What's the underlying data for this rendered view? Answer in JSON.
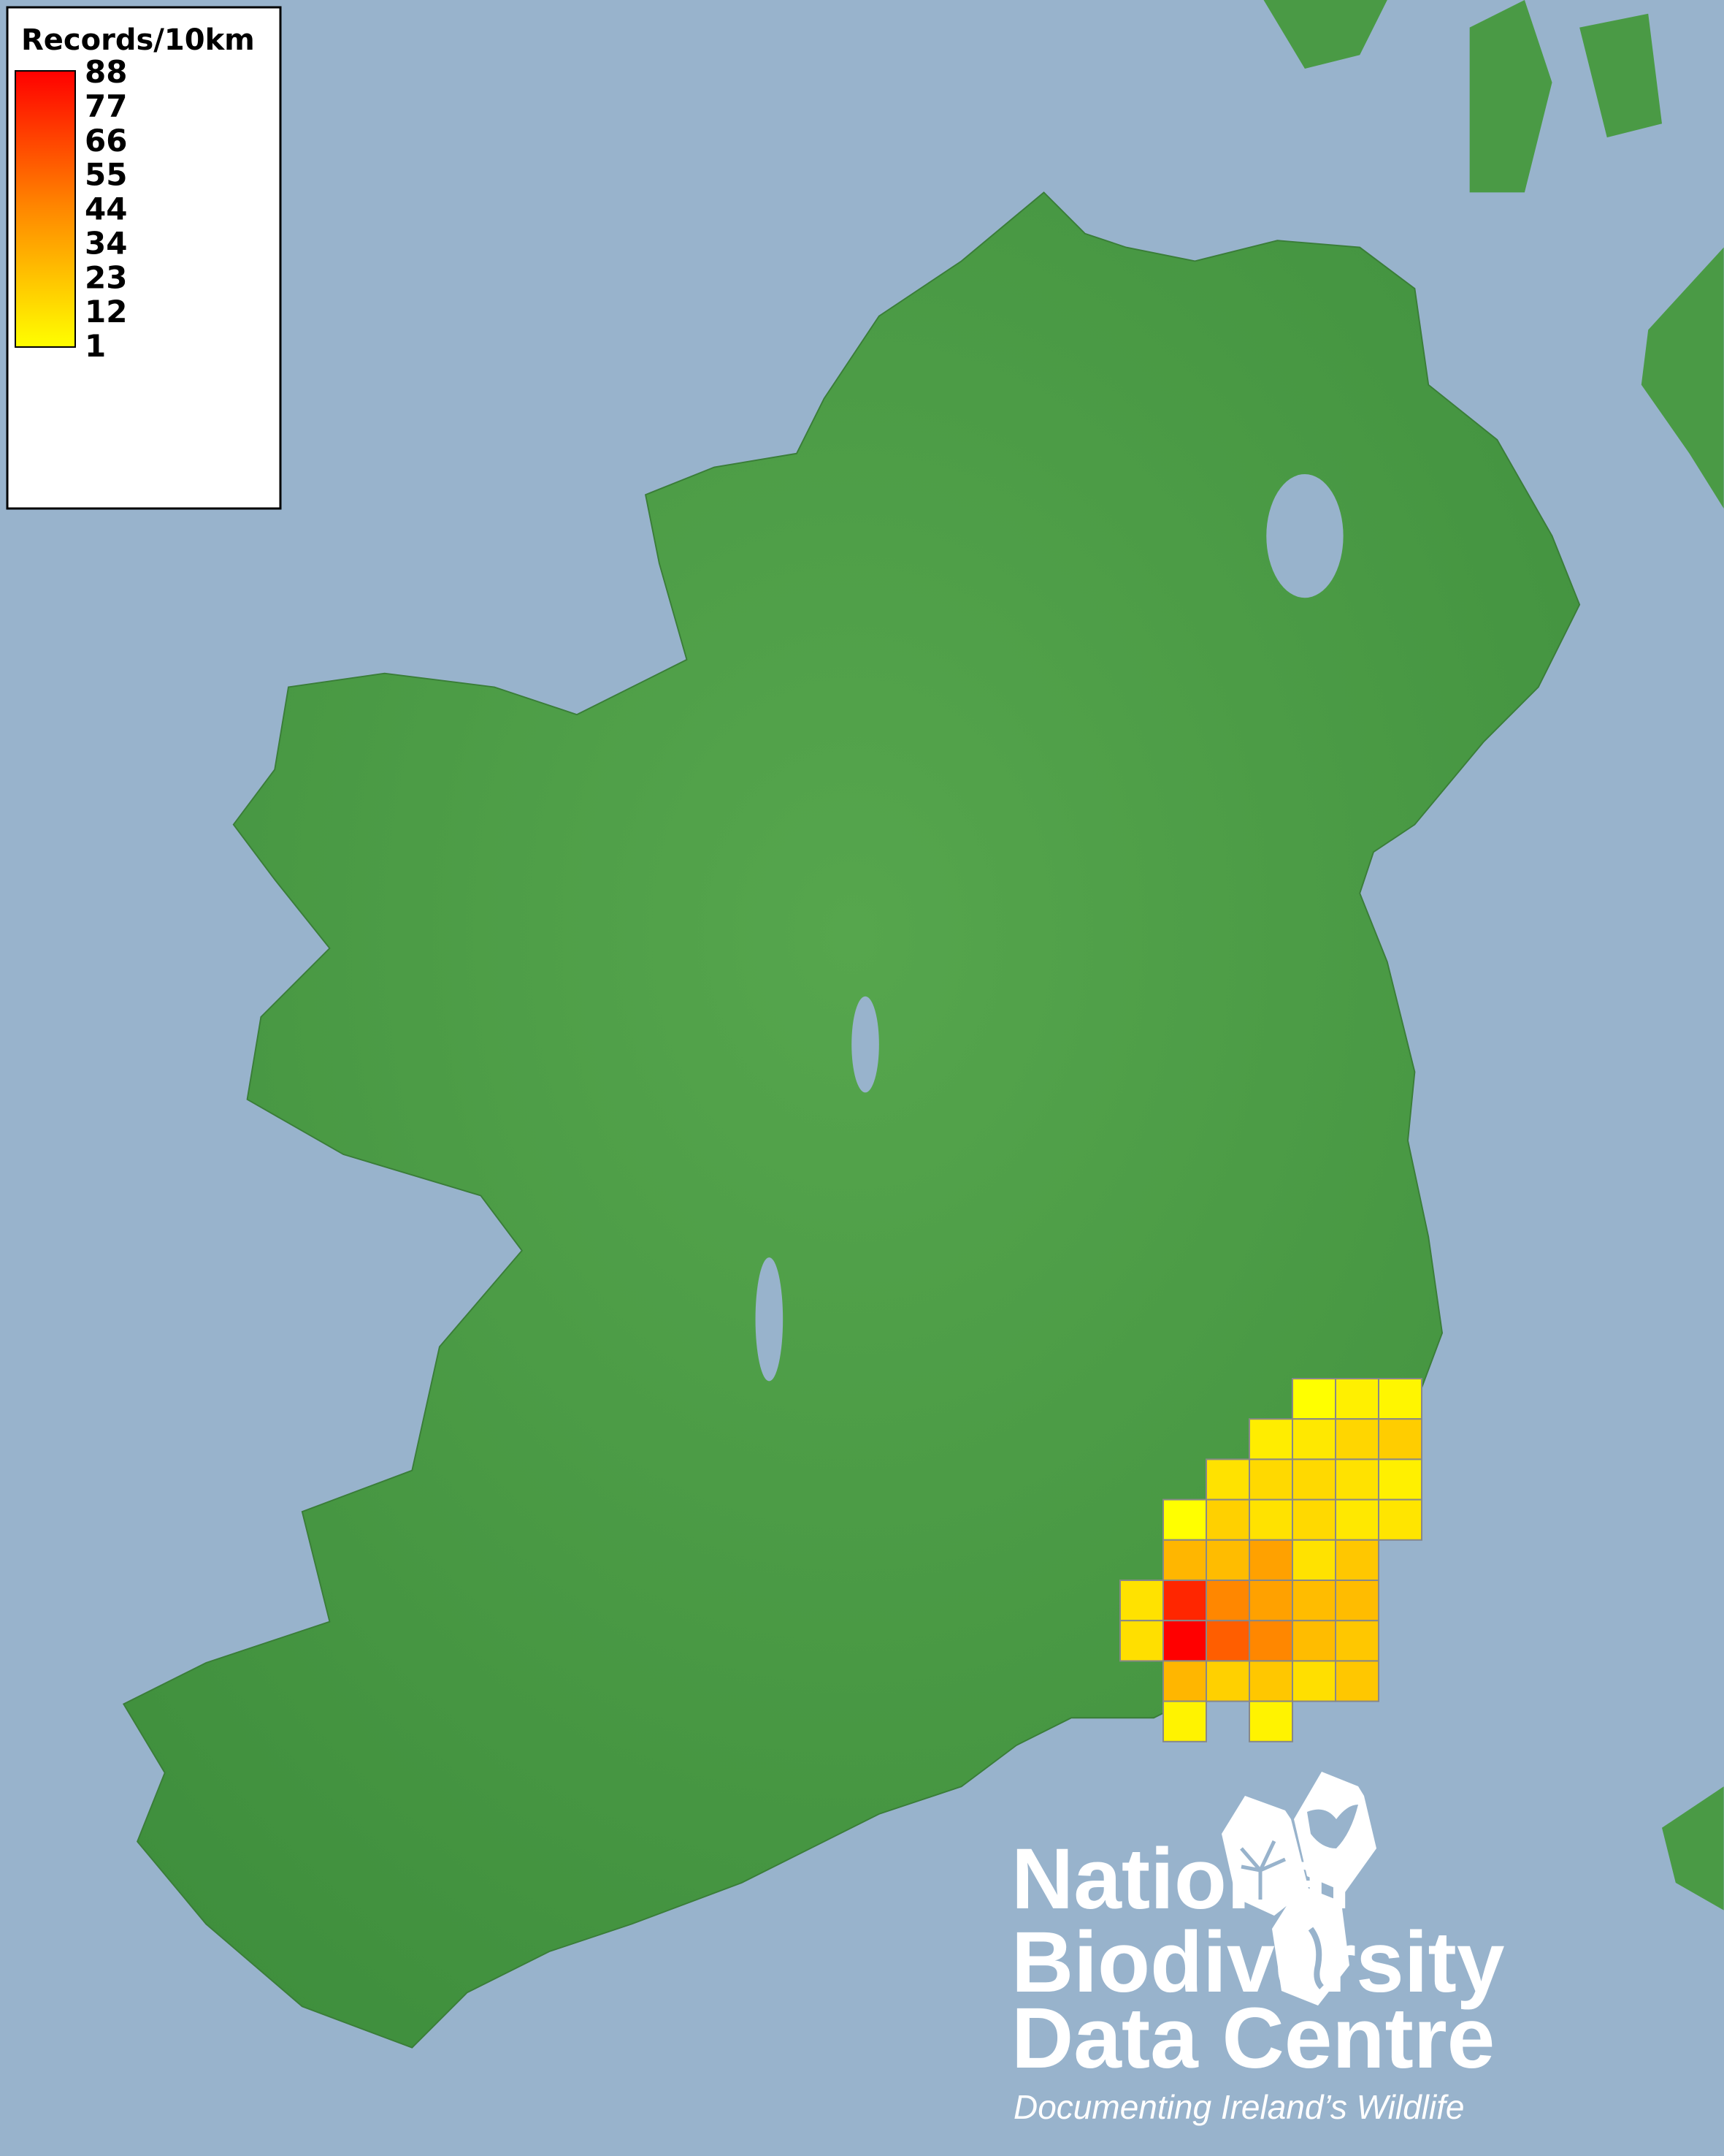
{
  "legend": {
    "title": "Records/10km",
    "ticks": [
      "88",
      "77",
      "66",
      "55",
      "44",
      "34",
      "23",
      "12",
      "1"
    ],
    "color_low": "#ffff00",
    "color_high": "#ff0000"
  },
  "map": {
    "sea_color": "#98b3cc",
    "land_color": "#4a9a45",
    "grid_border_color": "#888888"
  },
  "chart_data": {
    "type": "heatmap",
    "title": "Records/10km",
    "value_range": [
      1,
      88
    ],
    "colorscale": [
      "#ffff00",
      "#ff0000"
    ],
    "cells": [
      {
        "row": 0,
        "col": 4,
        "value": 1
      },
      {
        "row": 0,
        "col": 5,
        "value": 6
      },
      {
        "row": 0,
        "col": 6,
        "value": 4
      },
      {
        "row": 1,
        "col": 3,
        "value": 7
      },
      {
        "row": 1,
        "col": 4,
        "value": 9
      },
      {
        "row": 1,
        "col": 5,
        "value": 15
      },
      {
        "row": 1,
        "col": 6,
        "value": 18
      },
      {
        "row": 2,
        "col": 2,
        "value": 11
      },
      {
        "row": 2,
        "col": 3,
        "value": 14
      },
      {
        "row": 2,
        "col": 4,
        "value": 14
      },
      {
        "row": 2,
        "col": 5,
        "value": 11
      },
      {
        "row": 2,
        "col": 6,
        "value": 6
      },
      {
        "row": 3,
        "col": 1,
        "value": 1
      },
      {
        "row": 3,
        "col": 2,
        "value": 17
      },
      {
        "row": 3,
        "col": 3,
        "value": 11
      },
      {
        "row": 3,
        "col": 4,
        "value": 14
      },
      {
        "row": 3,
        "col": 5,
        "value": 9
      },
      {
        "row": 3,
        "col": 6,
        "value": 10
      },
      {
        "row": 4,
        "col": 1,
        "value": 26
      },
      {
        "row": 4,
        "col": 2,
        "value": 24
      },
      {
        "row": 4,
        "col": 3,
        "value": 33
      },
      {
        "row": 4,
        "col": 4,
        "value": 11
      },
      {
        "row": 4,
        "col": 5,
        "value": 20
      },
      {
        "row": 5,
        "col": 0,
        "value": 11
      },
      {
        "row": 5,
        "col": 1,
        "value": 75
      },
      {
        "row": 5,
        "col": 2,
        "value": 42
      },
      {
        "row": 5,
        "col": 3,
        "value": 33
      },
      {
        "row": 5,
        "col": 4,
        "value": 24
      },
      {
        "row": 5,
        "col": 5,
        "value": 24
      },
      {
        "row": 6,
        "col": 0,
        "value": 12
      },
      {
        "row": 6,
        "col": 1,
        "value": 88
      },
      {
        "row": 6,
        "col": 2,
        "value": 56
      },
      {
        "row": 6,
        "col": 3,
        "value": 42
      },
      {
        "row": 6,
        "col": 4,
        "value": 24
      },
      {
        "row": 6,
        "col": 5,
        "value": 20
      },
      {
        "row": 7,
        "col": 1,
        "value": 26
      },
      {
        "row": 7,
        "col": 2,
        "value": 17
      },
      {
        "row": 7,
        "col": 3,
        "value": 20
      },
      {
        "row": 7,
        "col": 4,
        "value": 12
      },
      {
        "row": 7,
        "col": 5,
        "value": 20
      },
      {
        "row": 8,
        "col": 1,
        "value": 5
      },
      {
        "row": 8,
        "col": 3,
        "value": 5
      }
    ]
  },
  "logo": {
    "lines": [
      "National",
      "Biodiversity",
      "Data Centre"
    ],
    "tagline": "Documenting Ireland’s Wildlife",
    "icons": [
      "tree-icon",
      "butterfly-icon",
      "seahorse-icon"
    ]
  }
}
